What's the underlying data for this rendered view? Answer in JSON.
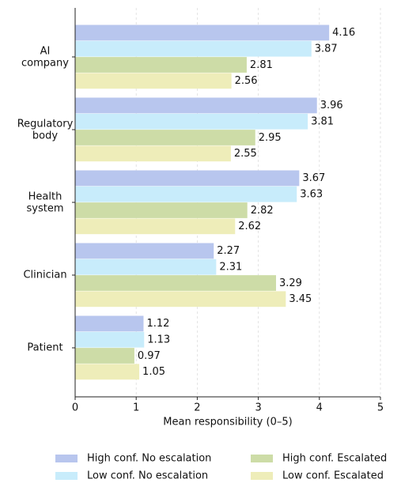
{
  "chart_data": {
    "type": "barh",
    "categories": [
      "AI\ncompany",
      "Regulatory\nbody",
      "Health\nsystem",
      "Clinician",
      "Patient"
    ],
    "series": [
      {
        "name": "High conf. No escalation",
        "color": "#b8c6ee",
        "values": [
          4.16,
          3.96,
          3.67,
          2.27,
          1.12
        ]
      },
      {
        "name": "Low conf. No escalation",
        "color": "#c8ecfb",
        "values": [
          3.87,
          3.81,
          3.63,
          2.31,
          1.13
        ]
      },
      {
        "name": "High conf. Escalated",
        "color": "#cddca7",
        "values": [
          2.81,
          2.95,
          2.82,
          3.29,
          0.97
        ]
      },
      {
        "name": "Low conf. Escalated",
        "color": "#eeedb9",
        "values": [
          2.56,
          2.55,
          2.62,
          3.45,
          1.05
        ]
      }
    ],
    "x_label": "Mean responsibility (0–5)",
    "xlim": [
      0,
      5
    ],
    "xticks": [
      0,
      1,
      2,
      3,
      4,
      5
    ],
    "grid": true,
    "legend": "lower center"
  }
}
